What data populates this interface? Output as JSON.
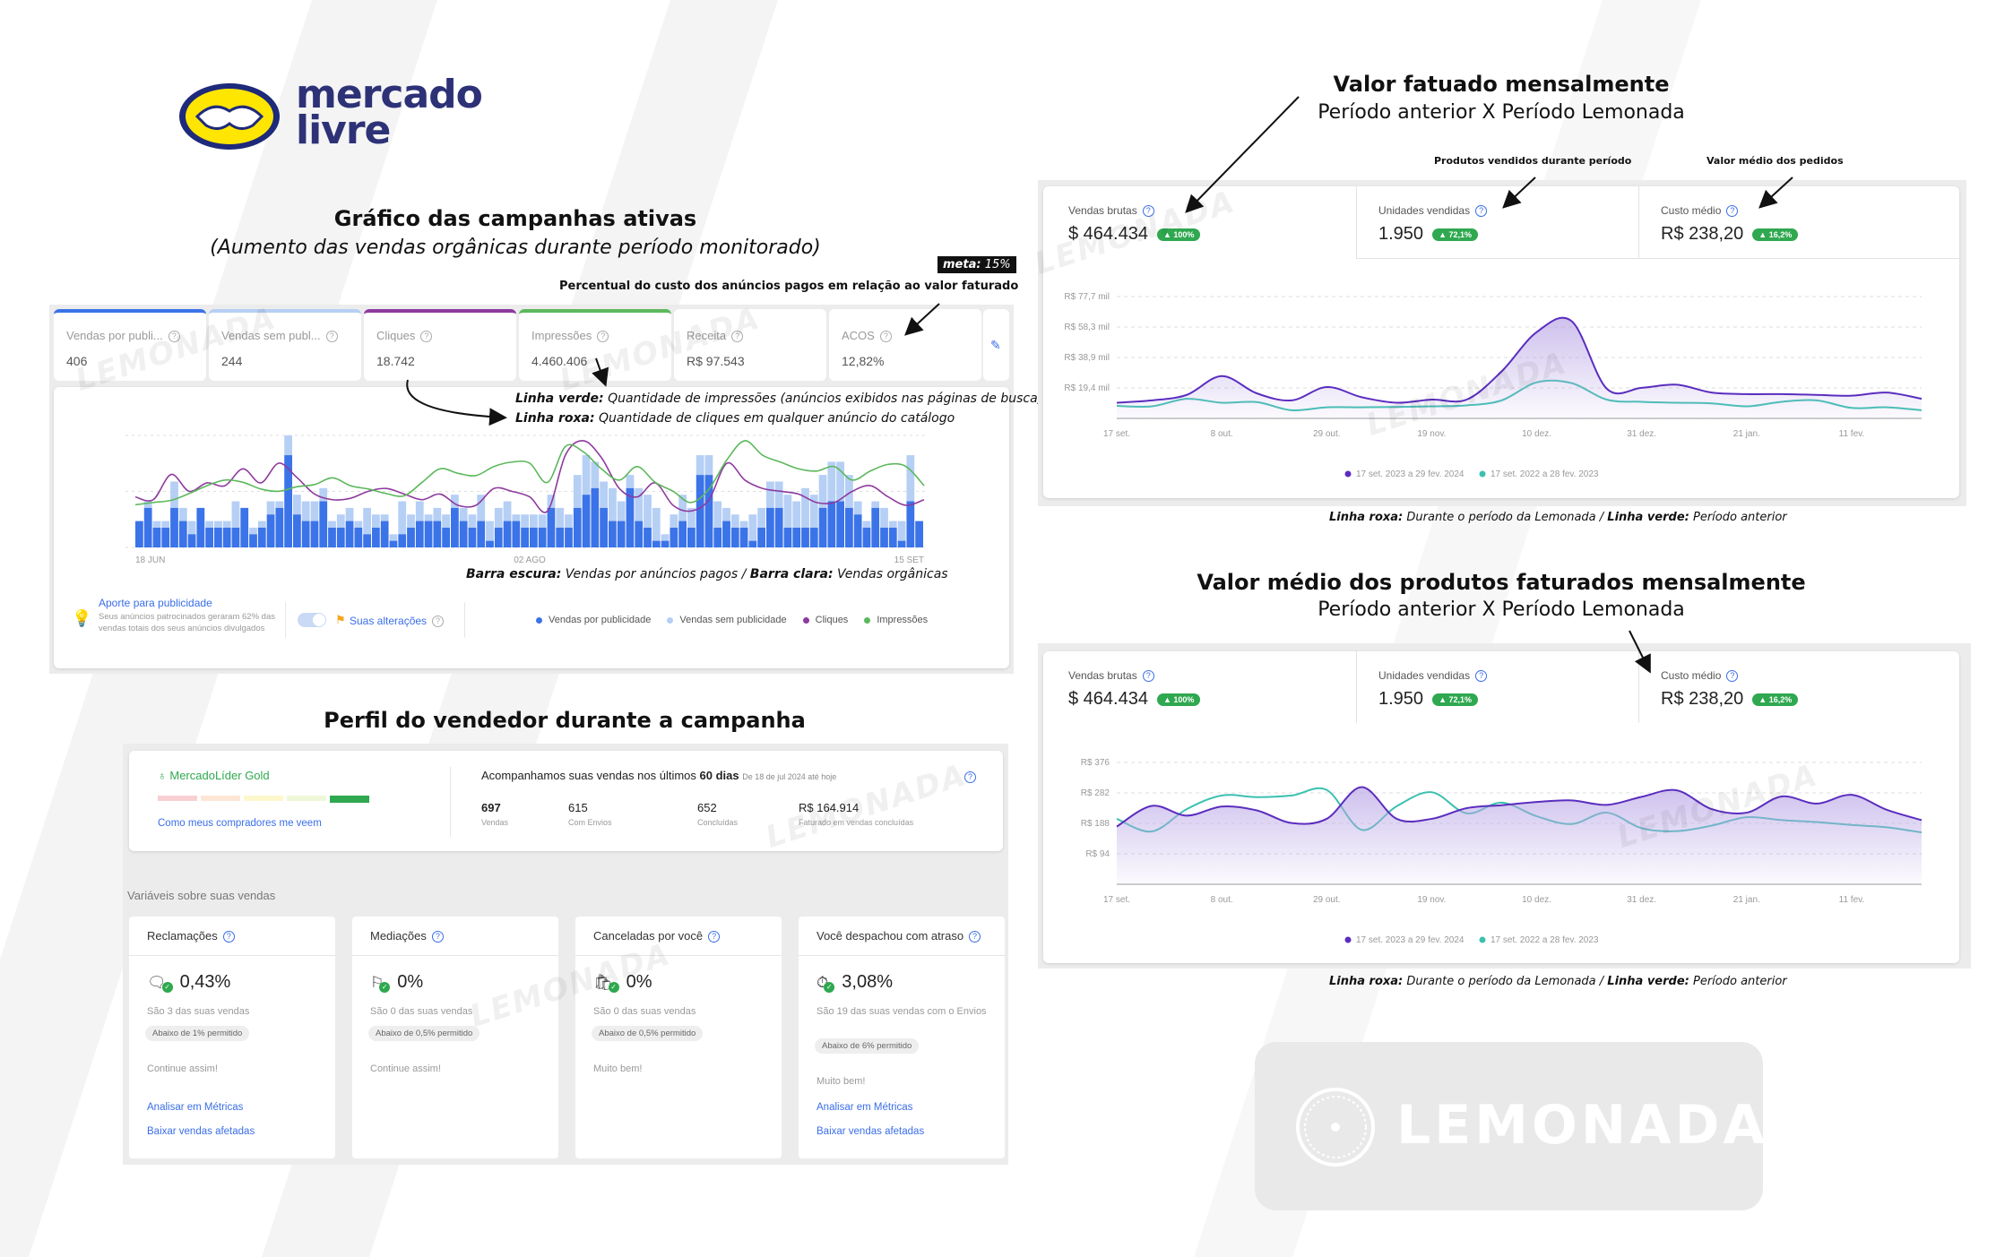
{
  "brand": {
    "logo_text_line1": "mercado",
    "logo_text_line2": "livre",
    "watermark": "LEMONADA"
  },
  "campaigns": {
    "title": "Gráfico das campanhas ativas",
    "subtitle": "(Aumento das vendas orgânicas durante período monitorado)",
    "meta_label": "meta:",
    "meta_value": "15%",
    "acos_note": "Percentual do custo dos anúncios pagos em relação ao valor faturado",
    "kpis": [
      {
        "label": "Vendas por publi...",
        "value": "406",
        "color": "#3b73e8"
      },
      {
        "label": "Vendas sem publ...",
        "value": "244",
        "color": "#b6cff5"
      },
      {
        "label": "Cliques",
        "value": "18.742",
        "color": "#8e3a9e"
      },
      {
        "label": "Impressões",
        "value": "4.460.406",
        "color": "#5cb85c"
      },
      {
        "label": "Receita",
        "value": "R$ 97.543",
        "color": ""
      },
      {
        "label": "ACOS",
        "value": "12,82%",
        "color": ""
      }
    ],
    "note_green_label": "Linha verde:",
    "note_green_text": " Quantidade de impressões (anúncios exibidos nas páginas de busca)",
    "note_purple_label": "Linha roxa:",
    "note_purple_text": " Quantidade de cliques em qualquer anúncio do catálogo",
    "bar_note_dark_label": "Barra escura:",
    "bar_note_dark_text": " Vendas por anúncios pagos / ",
    "bar_note_light_label": "Barra clara:",
    "bar_note_light_text": " Vendas orgânicas",
    "aporte_title": "Aporte para publicidade",
    "aporte_text": "Seus anúncios patrocinados geraram 62% das vendas totais dos seus anúncios divulgados",
    "changes_label": "Suas alterações",
    "legend": [
      {
        "label": "Vendas por publicidade",
        "color": "#3b73e8"
      },
      {
        "label": "Vendas sem publicidade",
        "color": "#b6cff5"
      },
      {
        "label": "Cliques",
        "color": "#8e3a9e"
      },
      {
        "label": "Impressões",
        "color": "#5cb85c"
      }
    ]
  },
  "chart_data": [
    {
      "type": "bar",
      "x_tick_labels": [
        "18 JUN",
        "02 AGO",
        "15 SET"
      ],
      "grid": true,
      "series": [
        {
          "name": "Vendas por publicidade",
          "color": "#3b73e8",
          "values": [
            4,
            6,
            3,
            3,
            6,
            4,
            2,
            6,
            3,
            3,
            3,
            3,
            6,
            2,
            3,
            5,
            6,
            14,
            5,
            4,
            4,
            7,
            3,
            3,
            4,
            3,
            2,
            3,
            4,
            1,
            2,
            3,
            4,
            4,
            4,
            3,
            6,
            4,
            3,
            4,
            1,
            3,
            4,
            4,
            3,
            3,
            3,
            6,
            3,
            3,
            6,
            8,
            9,
            6,
            4,
            4,
            9,
            4,
            3,
            1,
            1,
            3,
            4,
            3,
            11,
            11,
            3,
            4,
            3,
            3,
            1,
            3,
            6,
            6,
            3,
            3,
            3,
            3,
            6,
            7,
            7,
            6,
            5,
            3,
            6,
            3,
            3,
            1,
            7,
            4
          ]
        },
        {
          "name": "Vendas sem publicidade",
          "color": "#b6cff5",
          "values": [
            0,
            1,
            1,
            1,
            4,
            2,
            2,
            0,
            1,
            1,
            1,
            4,
            0,
            1,
            1,
            2,
            1,
            3,
            3,
            3,
            3,
            2,
            1,
            2,
            2,
            1,
            4,
            2,
            1,
            1,
            5,
            2,
            3,
            1,
            2,
            2,
            2,
            2,
            2,
            4,
            3,
            3,
            3,
            1,
            2,
            2,
            2,
            2,
            3,
            2,
            5,
            6,
            4,
            4,
            5,
            3,
            2,
            5,
            5,
            5,
            1,
            2,
            4,
            3,
            3,
            3,
            4,
            2,
            2,
            1,
            4,
            3,
            4,
            4,
            5,
            4,
            6,
            5,
            5,
            6,
            6,
            5,
            2,
            1,
            1,
            3,
            1,
            3,
            7,
            0
          ]
        },
        {
          "name": "Cliques",
          "type": "line",
          "color": "#8e3a9e",
          "values": [
            180,
            170,
            260,
            200,
            230,
            220,
            280,
            230,
            300,
            250,
            190,
            170,
            175,
            200,
            210,
            190,
            170,
            190,
            150,
            150,
            210,
            200,
            180,
            130,
            330,
            380,
            320,
            210,
            180,
            230,
            150,
            130,
            170,
            300,
            240,
            210,
            200,
            190,
            160,
            160,
            200,
            220,
            180,
            150,
            170
          ]
        },
        {
          "name": "Impressões",
          "type": "line",
          "color": "#5cb85c",
          "values": [
            38000,
            40000,
            42000,
            48000,
            55000,
            60000,
            58000,
            52000,
            50000,
            54000,
            56000,
            62000,
            55000,
            52000,
            48000,
            46000,
            58000,
            70000,
            66000,
            64000,
            72000,
            76000,
            75000,
            58000,
            90000,
            85000,
            70000,
            60000,
            72000,
            58000,
            50000,
            40000,
            52000,
            78000,
            95000,
            82000,
            76000,
            70000,
            68000,
            72000,
            60000,
            68000,
            74000,
            72000,
            55000
          ]
        }
      ]
    },
    {
      "type": "area",
      "title": "Valor fatuado mensalmente",
      "subtitle": "Período anterior X Período Lemonada",
      "y_tick_labels": [
        "R$ 77,7 mil",
        "R$ 58,3 mil",
        "R$ 38,9 mil",
        "R$ 19,4 mil"
      ],
      "ylim": [
        0,
        77.7
      ],
      "yunit": "R$ mil",
      "x_tick_labels": [
        "17 set.",
        "8 out.",
        "29 out.",
        "19 nov.",
        "10 dez.",
        "31 dez.",
        "21 jan.",
        "11 fev."
      ],
      "grid": true,
      "legend_position": "bottom",
      "series": [
        {
          "name": "17 set. 2023 a 29 fev. 2024",
          "color": "#5b2dbf",
          "values": [
            10,
            11.5,
            15,
            27,
            16,
            11.5,
            20,
            13.5,
            10,
            12,
            12,
            30,
            55,
            62,
            19,
            19.5,
            21.5,
            16.5,
            15.5,
            15.5,
            15,
            14.5,
            16.5,
            12.5
          ]
        },
        {
          "name": "17 set. 2022 a 28 fev. 2023",
          "color": "#3cc0b0",
          "values": [
            8,
            7.7,
            12.5,
            10,
            10.4,
            5.2,
            7.1,
            7.1,
            7.3,
            7.7,
            8.3,
            11.5,
            23,
            22.5,
            12,
            10.6,
            10,
            9.6,
            7.7,
            10.6,
            11.5,
            6.7,
            7.1,
            5.2
          ]
        }
      ]
    },
    {
      "type": "area",
      "title": "Valor médio dos produtos faturados mensalmente",
      "subtitle": "Período anterior X Período Lemonada",
      "y_tick_labels": [
        "R$ 376",
        "R$ 282",
        "R$ 188",
        "R$ 94"
      ],
      "ylim": [
        0,
        376
      ],
      "yunit": "R$",
      "x_tick_labels": [
        "17 set.",
        "8 out.",
        "29 out.",
        "19 nov.",
        "10 dez.",
        "31 dez.",
        "21 jan.",
        "11 fev."
      ],
      "grid": true,
      "legend_position": "bottom",
      "series": [
        {
          "name": "17 set. 2023 a 29 fev. 2024",
          "color": "#5b2dbf",
          "values": [
            178,
            242,
            212,
            240,
            228,
            189,
            202,
            300,
            202,
            202,
            235,
            244,
            254,
            259,
            245,
            270,
            290,
            232,
            221,
            271,
            249,
            276,
            230,
            198
          ]
        },
        {
          "name": "17 set. 2022 a 28 fev. 2023",
          "color": "#3cc0b0",
          "values": [
            202,
            163,
            232,
            274,
            269,
            274,
            291,
            168,
            241,
            284,
            219,
            252,
            210,
            186,
            221,
            173,
            164,
            181,
            207,
            198,
            192,
            183,
            176,
            160
          ]
        }
      ]
    }
  ],
  "monthly": {
    "annot_units": "Produtos vendidos durante período",
    "annot_avg": "Valor médio dos pedidos",
    "kpis": [
      {
        "label": "Vendas brutas",
        "value": "$ 464.434",
        "badge": "▲ 100%"
      },
      {
        "label": "Unidades vendidas",
        "value": "1.950",
        "badge": "▲ 72,1%"
      },
      {
        "label": "Custo médio",
        "value": "R$ 238,20",
        "badge": "▲ 16,2%"
      }
    ],
    "caption_purple_label": "Linha roxa:",
    "caption_purple_text": " Durante o período da Lemonada / ",
    "caption_green_label": "Linha verde:",
    "caption_green_text": " Período anterior"
  },
  "seller": {
    "title": "Perfil do vendedor durante a campanha",
    "medal": "MercadoLíder Gold",
    "reputation_colors": [
      "#f8d0d3",
      "#fde6d6",
      "#fdf7cc",
      "#eef8d8",
      "#2fa84f"
    ],
    "buyers_link": "Como meus compradores me veem",
    "tracking_text": "Acompanhamos suas vendas nos últimos ",
    "tracking_days": "60 dias",
    "tracking_range": "De 18 de jul 2024 até hoje",
    "stats": [
      {
        "value": "697",
        "label": "Vendas"
      },
      {
        "value": "615",
        "label": "Com Envios"
      },
      {
        "value": "652",
        "label": "Concluídas"
      },
      {
        "value": "R$ 164.914",
        "label": "Faturado em vendas concluídas"
      }
    ],
    "variables_title": "Variáveis sobre suas vendas",
    "cards": [
      {
        "title": "Reclamações",
        "icon": "chat-icon",
        "value": "0,43%",
        "desc": "São 3 das suas vendas",
        "limit": "Abaixo de 1% permitido",
        "msg": "Continue assim!",
        "links": [
          "Analisar em Métricas",
          "Baixar vendas afetadas"
        ]
      },
      {
        "title": "Mediações",
        "icon": "mediation-icon",
        "value": "0%",
        "desc": "São 0 das suas vendas",
        "limit": "Abaixo de 0,5% permitido",
        "msg": "Continue assim!",
        "links": []
      },
      {
        "title": "Canceladas por você",
        "icon": "cancel-bag-icon",
        "value": "0%",
        "desc": "São 0 das suas vendas",
        "limit": "Abaixo de 0,5% permitido",
        "msg": "Muito bem!",
        "links": []
      },
      {
        "title": "Você despachou com atraso",
        "icon": "stopwatch-icon",
        "value": "3,08%",
        "desc": "São 19 das suas vendas com o Envios",
        "limit": "Abaixo de 6% permitido",
        "msg": "Muito bem!",
        "links": [
          "Analisar em Métricas",
          "Baixar vendas afetadas"
        ]
      }
    ]
  }
}
